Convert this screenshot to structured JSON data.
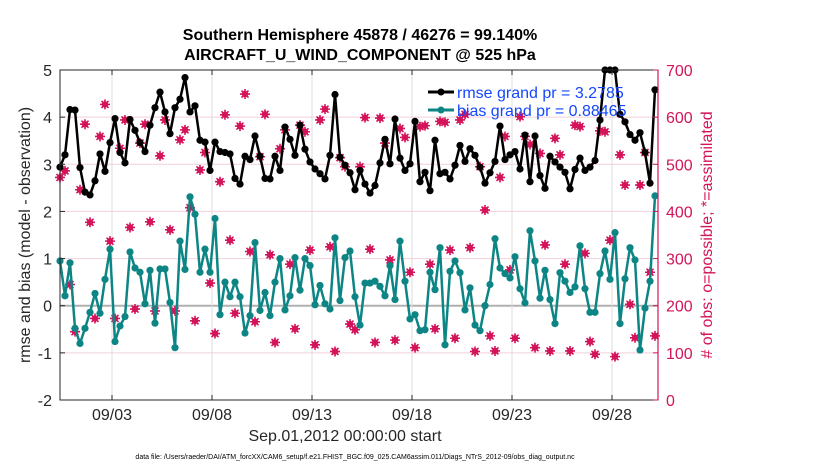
{
  "chart_data": {
    "type": "line",
    "title": [
      "Southern Hemisphere 45878 / 46276 = 99.140%",
      "AIRCRAFT_U_WIND_COMPONENT @ 525 hPa"
    ],
    "xlabel": "Sep.01,2012 00:00:00 start",
    "ylabel": "rmse and bias (model - observation)",
    "ylabel_right": "# of obs: o=possible; *=assimilated",
    "footer": "data file: /Users/raeder/DAI/ATM_forcXX/CAM6_setup/f.e21.FHIST_BGC.f09_025.CAM6assim.011/Diags_NTrS_2012-09/obs_diag_output.nc",
    "x_start_day": 0.4,
    "x_step_days": 0.25,
    "xlim": [
      0.4,
      30.3
    ],
    "xticks": [
      {
        "day": 3,
        "label": "09/03"
      },
      {
        "day": 8,
        "label": "09/08"
      },
      {
        "day": 13,
        "label": "09/13"
      },
      {
        "day": 18,
        "label": "09/18"
      },
      {
        "day": 23,
        "label": "09/23"
      },
      {
        "day": 28,
        "label": "09/28"
      }
    ],
    "ylim": [
      -2,
      5
    ],
    "yticks": [
      "-2",
      "-1",
      "0",
      "1",
      "2",
      "3",
      "4",
      "5"
    ],
    "ylim_right": [
      0,
      700
    ],
    "yticks_right": [
      "0",
      "100",
      "200",
      "300",
      "400",
      "500",
      "600",
      "700"
    ],
    "grid": true,
    "legend_position": "top-right",
    "colors": {
      "rmse": "#000000",
      "bias": "#0e8585",
      "obs": "#d4145a",
      "legend_text": "#1447ff"
    },
    "series": [
      {
        "name": "rmse grand pr = 3.2785",
        "axis": "left",
        "values": [
          2.94,
          3.2,
          4.16,
          4.15,
          2.93,
          2.41,
          2.35,
          2.65,
          3.22,
          2.85,
          3.46,
          3.97,
          3.25,
          3.03,
          3.95,
          3.72,
          3.46,
          3.27,
          3.83,
          4.2,
          4.53,
          4.11,
          3.65,
          4.2,
          4.38,
          4.84,
          4.11,
          4.24,
          3.51,
          3.47,
          2.87,
          3.47,
          3.27,
          3.25,
          3.22,
          2.7,
          2.58,
          3.17,
          3.1,
          3.6,
          3.17,
          2.7,
          2.69,
          3.17,
          2.87,
          3.79,
          3.53,
          3.19,
          3.83,
          3.32,
          3.05,
          2.9,
          2.8,
          2.69,
          3.19,
          4.48,
          3.15,
          2.98,
          2.82,
          2.46,
          2.87,
          2.58,
          2.39,
          2.55,
          3.03,
          3.53,
          3.01,
          3.96,
          3.13,
          2.87,
          3.01,
          3.91,
          2.63,
          2.83,
          2.44,
          3.51,
          2.8,
          2.83,
          2.69,
          2.98,
          3.4,
          3.06,
          3.33,
          3.19,
          2.94,
          2.6,
          2.82,
          3.06,
          3.81,
          3.1,
          3.2,
          3.27,
          2.9,
          3.62,
          2.63,
          3.6,
          2.76,
          2.49,
          3.17,
          3.05,
          2.94,
          2.83,
          2.48,
          2.89,
          3.13,
          2.87,
          2.94,
          3.08,
          3.94,
          5.0,
          5.0,
          5.0,
          4.06,
          3.9,
          3.63,
          3.51,
          3.67,
          3.25,
          2.6,
          4.58
        ]
      },
      {
        "name": "bias grand pr = 0.88465",
        "axis": "left",
        "values": [
          0.95,
          0.21,
          0.91,
          -0.48,
          -0.8,
          -0.48,
          -0.14,
          0.26,
          -0.16,
          0.56,
          1.2,
          -0.76,
          -0.43,
          -0.23,
          1.14,
          0.8,
          0.71,
          0.04,
          0.75,
          -0.37,
          0.78,
          0.78,
          0.07,
          -0.89,
          1.37,
          0.77,
          2.31,
          1.94,
          0.71,
          1.2,
          0.71,
          1.85,
          -0.19,
          0.5,
          0.19,
          0.5,
          0.19,
          -0.58,
          -0.21,
          1.34,
          -0.1,
          0.28,
          -0.21,
          0.5,
          1.0,
          -0.09,
          0.21,
          1.02,
          0.33,
          1.0,
          0.85,
          0.02,
          0.43,
          0.04,
          -0.07,
          1.44,
          0.11,
          1.02,
          1.16,
          0.19,
          -0.41,
          0.48,
          0.48,
          0.52,
          0.41,
          0.21,
          0.85,
          0.13,
          1.37,
          0.52,
          -0.28,
          -0.19,
          -0.53,
          -0.51,
          0.71,
          0.34,
          1.23,
          -0.83,
          0.73,
          0.95,
          0.7,
          -0.09,
          0.38,
          -0.41,
          -0.53,
          0.0,
          0.45,
          1.42,
          0.8,
          0.68,
          0.59,
          1.04,
          0.36,
          0.06,
          1.59,
          0.95,
          0.16,
          0.75,
          0.13,
          -0.38,
          0.7,
          0.52,
          0.28,
          0.4,
          1.27,
          0.36,
          -0.14,
          -0.14,
          0.68,
          1.16,
          0.56,
          1.55,
          -0.38,
          0.57,
          1.23,
          0.97,
          -0.94,
          -0.05,
          0.52,
          2.33
        ]
      },
      {
        "name": "# of obs assimilated",
        "axis": "right",
        "values": [
          472,
          486,
          245,
          145,
          446,
          585,
          377,
          173,
          559,
          627,
          337,
          173,
          534,
          594,
          366,
          193,
          545,
          585,
          378,
          189,
          518,
          594,
          361,
          189,
          552,
          573,
          408,
          168,
          488,
          525,
          248,
          141,
          463,
          605,
          339,
          184,
          581,
          649,
          315,
          166,
          516,
          606,
          308,
          122,
          533,
          573,
          288,
          151,
          583,
          569,
          318,
          117,
          594,
          617,
          325,
          103,
          514,
          495,
          161,
          149,
          495,
          599,
          320,
          122,
          598,
          545,
          297,
          127,
          576,
          557,
          271,
          111,
          580,
          582,
          288,
          151,
          591,
          589,
          318,
          131,
          594,
          606,
          323,
          103,
          495,
          403,
          136,
          104,
          472,
          559,
          276,
          131,
          601,
          559,
          542,
          111,
          523,
          329,
          104,
          555,
          520,
          288,
          104,
          583,
          580,
          311,
          124,
          97,
          571,
          569,
          339,
          92,
          520,
          456,
          203,
          132,
          456,
          525,
          271,
          136
        ]
      }
    ]
  }
}
